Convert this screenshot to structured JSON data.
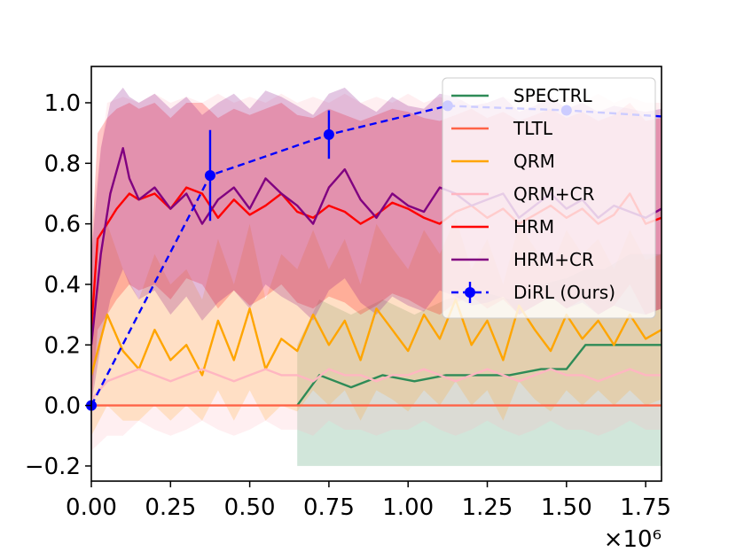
{
  "chart_data": {
    "type": "line",
    "title": "",
    "xlabel": "",
    "ylabel": "",
    "x_multiplier": "×10⁶",
    "xlim": [
      0.0,
      1.8
    ],
    "ylim": [
      -0.25,
      1.12
    ],
    "x_ticks": [
      "0.00",
      "0.25",
      "0.50",
      "0.75",
      "1.00",
      "1.25",
      "1.50",
      "1.75"
    ],
    "x_tick_values": [
      0.0,
      0.25,
      0.5,
      0.75,
      1.0,
      1.25,
      1.5,
      1.75
    ],
    "y_ticks": [
      "−0.2",
      "0.0",
      "0.2",
      "0.4",
      "0.6",
      "0.8",
      "1.0"
    ],
    "y_tick_values": [
      -0.2,
      0.0,
      0.2,
      0.4,
      0.6,
      0.8,
      1.0
    ],
    "legend_position": "top-right",
    "legend": [
      "SPECTRL",
      "TLTL",
      "QRM",
      "QRM+CR",
      "HRM",
      "HRM+CR",
      "DiRL (Ours)"
    ],
    "series": [
      {
        "name": "SPECTRL",
        "color": "#2e8b57",
        "x": [
          0.65,
          0.72,
          0.82,
          0.92,
          1.02,
          1.12,
          1.22,
          1.32,
          1.42,
          1.5,
          1.56,
          1.62,
          1.7,
          1.8
        ],
        "y": [
          0.0,
          0.1,
          0.06,
          0.1,
          0.08,
          0.1,
          0.1,
          0.1,
          0.12,
          0.12,
          0.2,
          0.2,
          0.2,
          0.2
        ],
        "band_low": [
          -0.2,
          -0.2,
          -0.2,
          -0.2,
          -0.2,
          -0.2,
          -0.2,
          -0.2,
          -0.2,
          -0.2,
          -0.2,
          -0.2,
          -0.2,
          -0.2
        ],
        "band_high": [
          0.2,
          0.35,
          0.3,
          0.35,
          0.3,
          0.35,
          0.38,
          0.35,
          0.4,
          0.42,
          0.45,
          0.45,
          0.5,
          0.5
        ]
      },
      {
        "name": "TLTL",
        "color": "#ff6347",
        "x": [
          0.0,
          1.8
        ],
        "y": [
          0.0,
          0.0
        ]
      },
      {
        "name": "QRM",
        "color": "#ffa500",
        "x": [
          0.0,
          0.05,
          0.1,
          0.15,
          0.2,
          0.25,
          0.3,
          0.35,
          0.4,
          0.45,
          0.5,
          0.55,
          0.6,
          0.65,
          0.7,
          0.75,
          0.8,
          0.85,
          0.9,
          0.95,
          1.0,
          1.05,
          1.1,
          1.15,
          1.2,
          1.25,
          1.3,
          1.35,
          1.4,
          1.45,
          1.5,
          1.55,
          1.6,
          1.65,
          1.7,
          1.75,
          1.8
        ],
        "y": [
          0.1,
          0.3,
          0.18,
          0.12,
          0.25,
          0.15,
          0.2,
          0.1,
          0.28,
          0.15,
          0.32,
          0.12,
          0.22,
          0.18,
          0.3,
          0.2,
          0.28,
          0.15,
          0.32,
          0.25,
          0.18,
          0.3,
          0.22,
          0.35,
          0.2,
          0.28,
          0.15,
          0.33,
          0.25,
          0.18,
          0.3,
          0.22,
          0.28,
          0.2,
          0.3,
          0.22,
          0.25
        ],
        "band_low": [
          -0.1,
          0.0,
          -0.05,
          -0.05,
          0.0,
          -0.05,
          0.0,
          -0.05,
          0.05,
          -0.05,
          0.05,
          -0.05,
          0.0,
          -0.02,
          0.05,
          0.0,
          0.05,
          -0.05,
          0.05,
          0.02,
          -0.02,
          0.05,
          0.0,
          0.08,
          0.0,
          0.05,
          -0.05,
          0.08,
          0.02,
          -0.02,
          0.05,
          0.0,
          0.05,
          0.0,
          0.05,
          0.0,
          0.02
        ],
        "band_high": [
          0.3,
          0.6,
          0.45,
          0.35,
          0.5,
          0.4,
          0.45,
          0.35,
          0.55,
          0.4,
          0.6,
          0.35,
          0.5,
          0.45,
          0.58,
          0.45,
          0.55,
          0.4,
          0.6,
          0.52,
          0.45,
          0.58,
          0.5,
          0.62,
          0.45,
          0.55,
          0.4,
          0.6,
          0.52,
          0.45,
          0.58,
          0.5,
          0.55,
          0.45,
          0.58,
          0.48,
          0.5
        ]
      },
      {
        "name": "QRM+CR",
        "color": "#ffb6c1",
        "x": [
          0.0,
          0.05,
          0.1,
          0.15,
          0.2,
          0.25,
          0.3,
          0.35,
          0.4,
          0.45,
          0.5,
          0.55,
          0.6,
          0.65,
          0.7,
          0.75,
          0.8,
          0.85,
          0.9,
          0.95,
          1.0,
          1.05,
          1.1,
          1.15,
          1.2,
          1.25,
          1.3,
          1.35,
          1.4,
          1.45,
          1.5,
          1.55,
          1.6,
          1.65,
          1.7,
          1.75,
          1.8
        ],
        "y": [
          0.02,
          0.08,
          0.1,
          0.12,
          0.1,
          0.08,
          0.1,
          0.12,
          0.1,
          0.08,
          0.1,
          0.12,
          0.1,
          0.1,
          0.08,
          0.12,
          0.1,
          0.1,
          0.08,
          0.1,
          0.1,
          0.12,
          0.1,
          0.08,
          0.1,
          0.12,
          0.1,
          0.08,
          0.1,
          0.12,
          0.1,
          0.1,
          0.08,
          0.1,
          0.12,
          0.1,
          0.1
        ],
        "band_low": [
          -0.15,
          -0.1,
          -0.1,
          -0.05,
          -0.08,
          -0.1,
          -0.08,
          -0.05,
          -0.08,
          -0.1,
          -0.08,
          -0.05,
          -0.08,
          -0.08,
          -0.1,
          -0.05,
          -0.08,
          -0.08,
          -0.1,
          -0.08,
          -0.08,
          -0.05,
          -0.08,
          -0.1,
          -0.08,
          -0.05,
          -0.08,
          -0.1,
          -0.08,
          -0.05,
          -0.08,
          -0.08,
          -0.1,
          -0.08,
          -0.05,
          -0.08,
          -0.08
        ],
        "band_high": [
          0.6,
          1.0,
          1.02,
          1.0,
          1.03,
          1.0,
          1.02,
          1.0,
          1.03,
          1.0,
          1.02,
          1.0,
          1.03,
          1.0,
          1.02,
          1.0,
          1.03,
          1.0,
          1.02,
          1.0,
          1.03,
          1.0,
          1.02,
          1.0,
          1.03,
          1.0,
          1.02,
          1.0,
          1.03,
          1.0,
          1.02,
          1.0,
          1.03,
          1.0,
          1.02,
          1.0,
          1.0
        ]
      },
      {
        "name": "HRM",
        "color": "#ff0000",
        "x": [
          0.0,
          0.02,
          0.05,
          0.08,
          0.12,
          0.15,
          0.2,
          0.25,
          0.3,
          0.35,
          0.4,
          0.45,
          0.5,
          0.55,
          0.6,
          0.65,
          0.7,
          0.75,
          0.8,
          0.85,
          0.9,
          0.95,
          1.0,
          1.05,
          1.1,
          1.15,
          1.2,
          1.25,
          1.3,
          1.35,
          1.4,
          1.45,
          1.5,
          1.55,
          1.6,
          1.65,
          1.7,
          1.75,
          1.8
        ],
        "y": [
          0.25,
          0.55,
          0.6,
          0.65,
          0.7,
          0.68,
          0.7,
          0.65,
          0.72,
          0.7,
          0.62,
          0.68,
          0.63,
          0.66,
          0.7,
          0.64,
          0.62,
          0.66,
          0.64,
          0.6,
          0.63,
          0.67,
          0.65,
          0.62,
          0.6,
          0.64,
          0.66,
          0.62,
          0.65,
          0.6,
          0.63,
          0.66,
          0.62,
          0.65,
          0.6,
          0.63,
          0.7,
          0.6,
          0.62
        ],
        "band_low": [
          0.0,
          0.25,
          0.3,
          0.35,
          0.4,
          0.38,
          0.4,
          0.35,
          0.42,
          0.4,
          0.32,
          0.38,
          0.33,
          0.36,
          0.4,
          0.34,
          0.32,
          0.36,
          0.34,
          0.3,
          0.33,
          0.37,
          0.35,
          0.32,
          0.3,
          0.34,
          0.36,
          0.32,
          0.35,
          0.3,
          0.33,
          0.36,
          0.32,
          0.35,
          0.3,
          0.33,
          0.4,
          0.3,
          0.32
        ],
        "band_high": [
          0.5,
          0.9,
          0.95,
          0.98,
          1.0,
          0.98,
          1.0,
          0.95,
          1.0,
          1.0,
          0.95,
          0.98,
          0.96,
          0.98,
          1.0,
          0.96,
          0.95,
          0.98,
          0.96,
          0.94,
          0.96,
          0.98,
          0.97,
          0.95,
          0.94,
          0.96,
          0.98,
          0.95,
          0.97,
          0.94,
          0.96,
          0.98,
          0.95,
          0.97,
          0.94,
          0.96,
          1.0,
          0.94,
          0.95
        ]
      },
      {
        "name": "HRM+CR",
        "color": "#800080",
        "x": [
          0.0,
          0.03,
          0.06,
          0.1,
          0.12,
          0.15,
          0.2,
          0.25,
          0.3,
          0.35,
          0.4,
          0.45,
          0.5,
          0.55,
          0.6,
          0.65,
          0.7,
          0.75,
          0.8,
          0.85,
          0.9,
          0.95,
          1.0,
          1.05,
          1.1,
          1.15,
          1.2,
          1.25,
          1.3,
          1.35,
          1.4,
          1.45,
          1.5,
          1.55,
          1.6,
          1.65,
          1.7,
          1.75,
          1.8
        ],
        "y": [
          0.2,
          0.5,
          0.7,
          0.85,
          0.75,
          0.68,
          0.72,
          0.65,
          0.7,
          0.6,
          0.68,
          0.72,
          0.65,
          0.75,
          0.7,
          0.66,
          0.6,
          0.72,
          0.78,
          0.68,
          0.62,
          0.7,
          0.66,
          0.64,
          0.72,
          0.7,
          0.66,
          0.68,
          0.7,
          0.62,
          0.66,
          0.7,
          0.65,
          0.68,
          0.62,
          0.66,
          0.64,
          0.62,
          0.65
        ],
        "band_low": [
          0.0,
          0.2,
          0.35,
          0.45,
          0.4,
          0.35,
          0.38,
          0.3,
          0.36,
          0.28,
          0.34,
          0.38,
          0.32,
          0.4,
          0.36,
          0.33,
          0.28,
          0.38,
          0.42,
          0.34,
          0.3,
          0.36,
          0.33,
          0.31,
          0.38,
          0.36,
          0.33,
          0.34,
          0.36,
          0.3,
          0.33,
          0.36,
          0.32,
          0.34,
          0.3,
          0.33,
          0.31,
          0.3,
          0.32
        ],
        "band_high": [
          0.5,
          0.85,
          1.0,
          1.05,
          1.02,
          1.0,
          1.03,
          0.98,
          1.02,
          0.96,
          1.0,
          1.03,
          0.98,
          1.04,
          1.02,
          0.99,
          0.96,
          1.03,
          1.05,
          1.0,
          0.97,
          1.02,
          0.99,
          0.98,
          1.03,
          1.02,
          0.99,
          1.0,
          1.02,
          0.97,
          0.99,
          1.02,
          0.98,
          1.0,
          0.97,
          0.99,
          0.98,
          0.97,
          0.98
        ]
      },
      {
        "name": "DiRL (Ours)",
        "color": "#0000ff",
        "style": "dashed-markers",
        "x": [
          0.0,
          0.375,
          0.75,
          1.125,
          1.5,
          1.875
        ],
        "y": [
          0.0,
          0.76,
          0.895,
          0.99,
          0.975,
          0.955
        ],
        "err": [
          0.0,
          0.15,
          0.08,
          0.01,
          0.01,
          0.01
        ]
      }
    ]
  }
}
